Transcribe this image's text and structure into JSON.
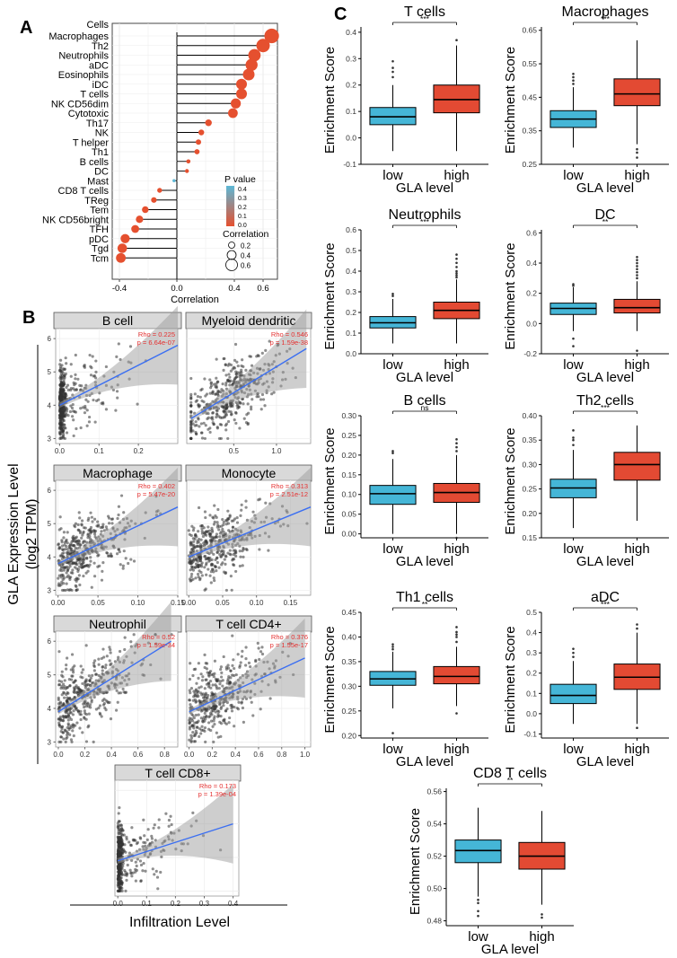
{
  "panel_labels": [
    "A",
    "B",
    "C"
  ],
  "colors": {
    "box_low": "#45b6d7",
    "box_high": "#e34a33",
    "fit_line": "#3b6ff2",
    "lollipop_high": "#e5502f",
    "lollipop_low": "#5cb8d6",
    "stat_red": "#e53030"
  },
  "chart_data": [
    {
      "panel": "A",
      "type": "scatter",
      "subtype": "lollipop",
      "y_header": "Cells",
      "xlabel": "Correlation",
      "xlim": [
        -0.45,
        0.7
      ],
      "xticks": [
        -0.4,
        0.0,
        0.4,
        0.6
      ],
      "xtick_labels": [
        "-0.4",
        "0.0",
        "0.4",
        "0.6"
      ],
      "categories": [
        "Macrophages",
        "Th2",
        "Neutrophils",
        "aDC",
        "Eosinophils",
        "iDC",
        "T cells",
        "NK CD56dim",
        "Cytotoxic",
        "Th17",
        "NK",
        "T helper",
        "Th1",
        "B cells",
        "DC",
        "Mast",
        "CD8 T cells",
        "TReg",
        "Tem",
        "NK CD56bright",
        "TFH",
        "pDC",
        "Tgd",
        "Tcm"
      ],
      "values": [
        0.66,
        0.6,
        0.54,
        0.52,
        0.5,
        0.45,
        0.45,
        0.41,
        0.39,
        0.22,
        0.17,
        0.15,
        0.14,
        0.08,
        0.07,
        -0.02,
        -0.12,
        -0.16,
        -0.22,
        -0.26,
        -0.29,
        -0.36,
        -0.38,
        -0.39
      ],
      "grid": true,
      "legend": {
        "title": "P value",
        "ticks": [
          "0.4",
          "0.3",
          "0.2",
          "0.1",
          "0.0"
        ],
        "size_title": "Correlation",
        "size_labels": [
          "0.2",
          "0.4",
          "0.6"
        ],
        "placement": "right"
      }
    },
    {
      "panel": "B",
      "type": "scatter",
      "ylabel": "GLA Expression Level\n(log2 TPM)",
      "xlabel": "Infiltration Level",
      "subplots": [
        {
          "title": "B cell",
          "rho": "Rho = 0.225",
          "p": "p = 6.64e-07",
          "xlim": [
            -0.01,
            0.3
          ],
          "xticks": [
            "0.0",
            "0.1",
            "0.2"
          ],
          "xtickv": [
            0,
            0.1,
            0.2
          ],
          "ylim": [
            2.85,
            6.3
          ],
          "yticks": [
            "3",
            "4",
            "5",
            "6"
          ],
          "ytickv": [
            3,
            4,
            5,
            6
          ],
          "fit": [
            [
              0,
              4.0
            ],
            [
              0.3,
              5.8
            ]
          ],
          "dist": "b"
        },
        {
          "title": "Myeloid dendritic",
          "rho": "Rho = 0.546",
          "p": "p = 1.59e-38",
          "xlim": [
            -0.05,
            1.4
          ],
          "xticks": [
            "0.5",
            "1.0"
          ],
          "xtickv": [
            0.5,
            1.0
          ],
          "ylim": [
            2.85,
            6.3
          ],
          "fit": [
            [
              0,
              3.6
            ],
            [
              1.35,
              5.7
            ]
          ],
          "dist": "md"
        },
        {
          "title": "Macrophage",
          "rho": "Rho = 0.402",
          "p": "p = 5.47e-20",
          "xlim": [
            -0.003,
            0.15
          ],
          "xticks": [
            "0.00",
            "0.05",
            "0.10",
            "0.15"
          ],
          "xtickv": [
            0,
            0.05,
            0.1,
            0.15
          ],
          "ylim": [
            2.85,
            6.3
          ],
          "yticks": [
            "3",
            "4",
            "5",
            "6"
          ],
          "ytickv": [
            3,
            4,
            5,
            6
          ],
          "fit": [
            [
              0,
              3.8
            ],
            [
              0.15,
              5.5
            ]
          ],
          "dist": "ma"
        },
        {
          "title": "Monocyte",
          "rho": "Rho = 0.313",
          "p": "p = 2.51e-12",
          "xlim": [
            -0.003,
            0.18
          ],
          "xticks": [
            "0.00",
            "0.05",
            "0.10",
            "0.15"
          ],
          "xtickv": [
            0,
            0.05,
            0.1,
            0.15
          ],
          "ylim": [
            2.85,
            6.3
          ],
          "fit": [
            [
              0,
              4.0
            ],
            [
              0.18,
              5.5
            ]
          ],
          "dist": "mo"
        },
        {
          "title": "Neutrophil",
          "rho": "Rho = 0.52",
          "p": "p = 1.59e-34",
          "xlim": [
            -0.02,
            0.9
          ],
          "xticks": [
            "0.0",
            "0.2",
            "0.4",
            "0.6",
            "0.8"
          ],
          "xtickv": [
            0,
            0.2,
            0.4,
            0.6,
            0.8
          ],
          "ylim": [
            2.85,
            6.3
          ],
          "yticks": [
            "3",
            "4",
            "5",
            "6"
          ],
          "ytickv": [
            3,
            4,
            5,
            6
          ],
          "fit": [
            [
              0,
              3.9
            ],
            [
              0.85,
              6.0
            ]
          ],
          "dist": "ne"
        },
        {
          "title": "T cell CD4+",
          "rho": "Rho = 0.376",
          "p": "p = 1.55e-17",
          "xlim": [
            -0.02,
            1.05
          ],
          "xticks": [
            "0.0",
            "0.2",
            "0.4",
            "0.6",
            "0.8",
            "1.0"
          ],
          "xtickv": [
            0,
            0.2,
            0.4,
            0.6,
            0.8,
            1.0
          ],
          "ylim": [
            2.85,
            6.3
          ],
          "fit": [
            [
              0,
              3.9
            ],
            [
              1.0,
              5.5
            ]
          ],
          "dist": "cd4"
        },
        {
          "title": "T cell CD8+",
          "rho": "Rho = 0.173",
          "p": "p = 1.39e-04",
          "xlim": [
            -0.01,
            0.42
          ],
          "xticks": [
            "0.0",
            "0.1",
            "0.2",
            "0.3",
            "0.4"
          ],
          "xtickv": [
            0,
            0.1,
            0.2,
            0.3,
            0.4
          ],
          "ylim": [
            2.85,
            6.3
          ],
          "fit": [
            [
              0,
              3.9
            ],
            [
              0.4,
              5.0
            ]
          ],
          "dist": "cd8"
        }
      ]
    },
    {
      "panel": "C",
      "type": "boxplot",
      "xlabel": "GLA level",
      "ylabel": "Enrichment Score",
      "categories": [
        "low",
        "high"
      ],
      "subplots": [
        {
          "title": "T cells",
          "sig": "***",
          "ylim": [
            -0.1,
            0.42
          ],
          "yticks": [
            -0.1,
            0,
            0.1,
            0.2,
            0.3,
            0.4
          ],
          "ytick_labels": [
            "-0.1",
            "0.0",
            "0.1",
            "0.2",
            "0.3",
            "0.4"
          ],
          "low": {
            "min": -0.05,
            "q1": 0.05,
            "median": 0.08,
            "q3": 0.115,
            "max": 0.2,
            "outliers": [
              0.23,
              0.25,
              0.265,
              0.29
            ]
          },
          "high": {
            "min": -0.05,
            "q1": 0.095,
            "median": 0.145,
            "q3": 0.2,
            "max": 0.35,
            "outliers": [
              0.37
            ]
          }
        },
        {
          "title": "Macrophages",
          "sig": "***",
          "ylim": [
            0.25,
            0.66
          ],
          "yticks": [
            0.25,
            0.35,
            0.45,
            0.55,
            0.65
          ],
          "ytick_labels": [
            "0.25",
            "0.35",
            "0.45",
            "0.55",
            "0.65"
          ],
          "low": {
            "min": 0.3,
            "q1": 0.36,
            "median": 0.385,
            "q3": 0.41,
            "max": 0.48,
            "outliers": [
              0.49,
              0.5,
              0.51,
              0.52
            ]
          },
          "high": {
            "min": 0.31,
            "q1": 0.425,
            "median": 0.46,
            "q3": 0.505,
            "max": 0.62,
            "outliers": [
              0.295,
              0.285,
              0.27
            ]
          }
        },
        {
          "title": "Neutrophils",
          "sig": "***",
          "ylim": [
            0,
            0.6
          ],
          "yticks": [
            0,
            0.1,
            0.2,
            0.3,
            0.4,
            0.5,
            0.6
          ],
          "ytick_labels": [
            "0.0",
            "0.1",
            "0.2",
            "0.3",
            "0.4",
            "0.5",
            "0.6"
          ],
          "low": {
            "min": 0.05,
            "q1": 0.125,
            "median": 0.15,
            "q3": 0.18,
            "max": 0.265,
            "outliers": [
              0.28,
              0.29
            ]
          },
          "high": {
            "min": 0.05,
            "q1": 0.17,
            "median": 0.21,
            "q3": 0.25,
            "max": 0.36,
            "outliers": [
              0.37,
              0.38,
              0.39,
              0.4,
              0.42,
              0.44,
              0.46,
              0.48
            ]
          }
        },
        {
          "title": "DC",
          "sig": "**",
          "ylim": [
            -0.2,
            0.62
          ],
          "yticks": [
            -0.2,
            0,
            0.2,
            0.4,
            0.6
          ],
          "ytick_labels": [
            "-0.2",
            "0.0",
            "0.2",
            "0.4",
            "0.6"
          ],
          "low": {
            "min": -0.05,
            "q1": 0.06,
            "median": 0.1,
            "q3": 0.135,
            "max": 0.24,
            "outliers": [
              0.25,
              0.26,
              -0.1,
              -0.15
            ]
          },
          "high": {
            "min": -0.05,
            "q1": 0.07,
            "median": 0.105,
            "q3": 0.16,
            "max": 0.28,
            "outliers": [
              0.3,
              0.32,
              0.34,
              0.36,
              0.38,
              0.4,
              0.42,
              0.44,
              -0.18
            ]
          }
        },
        {
          "title": "B cells",
          "sig": "ns",
          "ylim": [
            -0.01,
            0.3
          ],
          "yticks": [
            0,
            0.05,
            0.1,
            0.15,
            0.2,
            0.25,
            0.3
          ],
          "ytick_labels": [
            "0.00",
            "0.05",
            "0.10",
            "0.15",
            "0.20",
            "0.25",
            "0.30"
          ],
          "low": {
            "min": 0.0,
            "q1": 0.075,
            "median": 0.102,
            "q3": 0.123,
            "max": 0.19,
            "outliers": [
              0.205,
              0.21
            ]
          },
          "high": {
            "min": 0.0,
            "q1": 0.08,
            "median": 0.105,
            "q3": 0.128,
            "max": 0.2,
            "outliers": [
              0.21,
              0.22,
              0.23,
              0.24,
              -0.01
            ]
          }
        },
        {
          "title": "Th2 cells",
          "sig": "***",
          "ylim": [
            0.15,
            0.4
          ],
          "yticks": [
            0.15,
            0.2,
            0.25,
            0.3,
            0.35,
            0.4
          ],
          "ytick_labels": [
            "0.15",
            "0.20",
            "0.25",
            "0.30",
            "0.35",
            "0.40"
          ],
          "low": {
            "min": 0.17,
            "q1": 0.232,
            "median": 0.252,
            "q3": 0.27,
            "max": 0.33,
            "outliers": [
              0.34,
              0.35,
              0.355,
              0.37
            ]
          },
          "high": {
            "min": 0.185,
            "q1": 0.268,
            "median": 0.3,
            "q3": 0.325,
            "max": 0.38,
            "outliers": []
          }
        },
        {
          "title": "Th1 cells",
          "sig": "**",
          "ylim": [
            0.195,
            0.45
          ],
          "yticks": [
            0.2,
            0.25,
            0.3,
            0.35,
            0.4,
            0.45
          ],
          "ytick_labels": [
            "0.20",
            "0.25",
            "0.30",
            "0.35",
            "0.40",
            "0.45"
          ],
          "low": {
            "min": 0.255,
            "q1": 0.302,
            "median": 0.315,
            "q3": 0.33,
            "max": 0.37,
            "outliers": [
              0.375,
              0.38,
              0.385,
              0.205
            ]
          },
          "high": {
            "min": 0.26,
            "q1": 0.305,
            "median": 0.32,
            "q3": 0.34,
            "max": 0.38,
            "outliers": [
              0.39,
              0.4,
              0.405,
              0.41,
              0.42,
              0.245
            ]
          }
        },
        {
          "title": "aDC",
          "sig": "***",
          "ylim": [
            -0.12,
            0.5
          ],
          "yticks": [
            -0.1,
            0,
            0.1,
            0.2,
            0.3,
            0.4,
            0.5
          ],
          "ytick_labels": [
            "-0.1",
            "0.0",
            "0.1",
            "0.2",
            "0.3",
            "0.4",
            "0.5"
          ],
          "low": {
            "min": -0.05,
            "q1": 0.05,
            "median": 0.09,
            "q3": 0.145,
            "max": 0.26,
            "outliers": [
              0.28,
              0.3,
              0.32
            ]
          },
          "high": {
            "min": -0.05,
            "q1": 0.12,
            "median": 0.18,
            "q3": 0.245,
            "max": 0.4,
            "outliers": [
              0.42,
              0.44,
              -0.07
            ]
          }
        },
        {
          "title": "CD8 T cells",
          "sig": "**",
          "ylim": [
            0.477,
            0.562
          ],
          "yticks": [
            0.48,
            0.5,
            0.52,
            0.54,
            0.56
          ],
          "ytick_labels": [
            "0.48",
            "0.50",
            "0.52",
            "0.54",
            "0.56"
          ],
          "low": {
            "min": 0.495,
            "q1": 0.516,
            "median": 0.5235,
            "q3": 0.53,
            "max": 0.55,
            "outliers": [
              0.493,
              0.491,
              0.486,
              0.483
            ]
          },
          "high": {
            "min": 0.49,
            "q1": 0.512,
            "median": 0.52,
            "q3": 0.5285,
            "max": 0.548,
            "outliers": [
              0.484,
              0.482
            ]
          }
        }
      ]
    }
  ]
}
